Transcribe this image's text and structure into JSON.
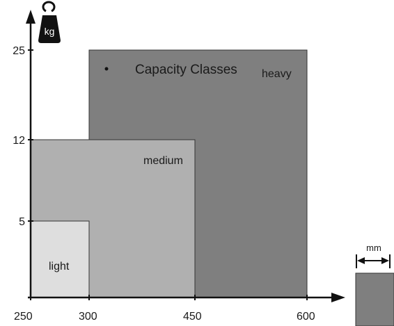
{
  "chart_data": {
    "type": "area",
    "title": "Capacity Classes",
    "x_ticks": [
      "250",
      "300",
      "450",
      "600"
    ],
    "y_ticks": [
      "5",
      "12",
      "25"
    ],
    "xlim": [
      250,
      600
    ],
    "ylim": [
      0,
      25
    ],
    "classes": [
      {
        "name": "heavy",
        "x_start": 300,
        "x_end": 600,
        "y_max": 25,
        "color": "#7f7f7f"
      },
      {
        "name": "medium",
        "x_start": 250,
        "x_end": 450,
        "y_max": 12,
        "color": "#b0b0b0"
      },
      {
        "name": "light",
        "x_start": 250,
        "x_end": 300,
        "y_max": 5,
        "color": "#dedede"
      }
    ],
    "y_unit_icon": "weight-kg-icon",
    "y_unit_label": "kg",
    "x_unit_label": "mm"
  }
}
